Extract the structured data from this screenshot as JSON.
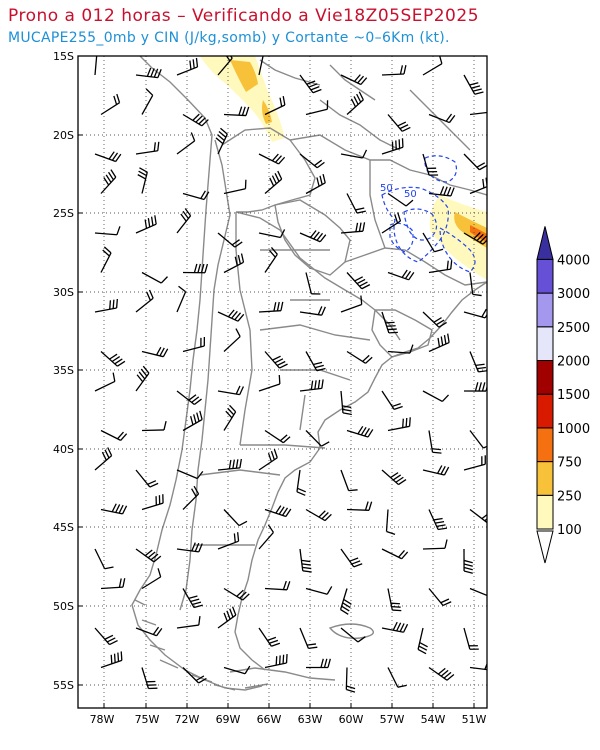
{
  "title": "Prono a 012 horas – Verificando a Vie18Z05SEP2025",
  "subtitle": "MUCAPE255_0mb y CIN (J/kg,somb) y Cortante ~0–6Km (kt).",
  "map": {
    "lat_labels": [
      "15S",
      "20S",
      "25S",
      "30S",
      "35S",
      "40S",
      "45S",
      "50S",
      "55S"
    ],
    "lon_labels": [
      "78W",
      "75W",
      "72W",
      "69W",
      "66W",
      "63W",
      "60W",
      "57W",
      "54W",
      "51W"
    ],
    "contour_labels": [
      "50",
      "50"
    ],
    "colors": {
      "grid": "#555555",
      "border": "#8a8a8a",
      "wind_barb": "#000000",
      "cin_contour": "#2244ee"
    }
  },
  "legend": {
    "levels": [
      "100",
      "250",
      "750",
      "1000",
      "1500",
      "2000",
      "2500",
      "3000",
      "4000"
    ],
    "colors": [
      "#fff9be",
      "#f8c13a",
      "#f57010",
      "#d81b00",
      "#a00000",
      "#e6e6fa",
      "#a497ee",
      "#6650d6",
      "#3a2f9f"
    ],
    "under_color": "#ffffff"
  }
}
